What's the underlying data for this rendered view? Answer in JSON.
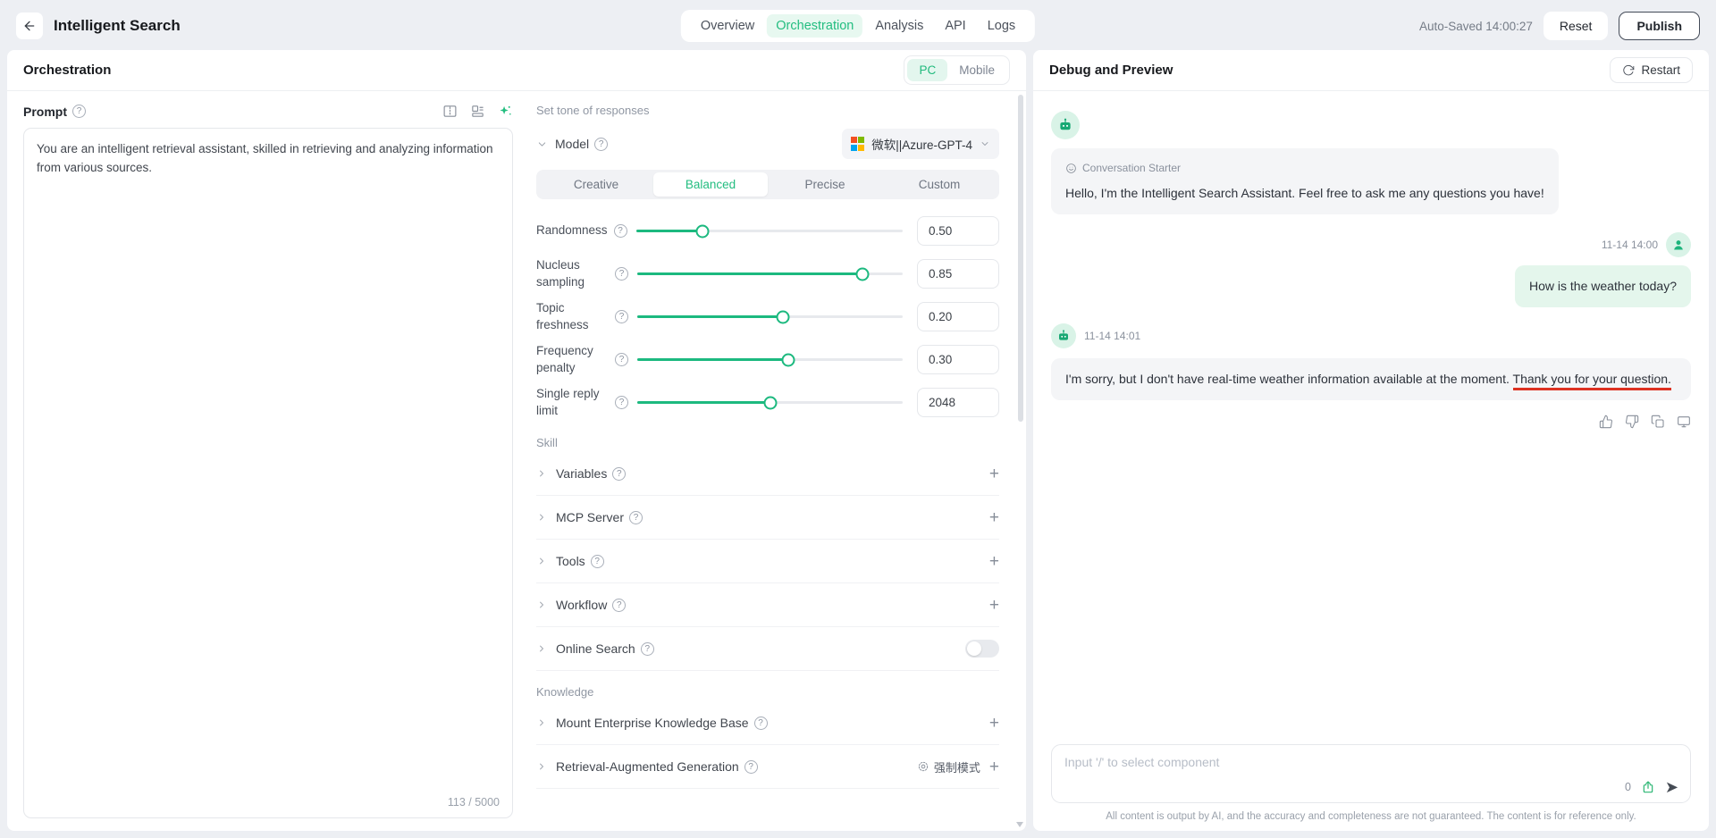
{
  "colors": {
    "accent_green": "#21ba7d",
    "accent_green_bg": "#e7f8f0",
    "underline_red": "#dd3222",
    "ms_logo": [
      "#f25022",
      "#7fba00",
      "#00a4ef",
      "#ffb900"
    ]
  },
  "header": {
    "title": "Intelligent Search",
    "tabs": [
      "Overview",
      "Orchestration",
      "Analysis",
      "API",
      "Logs"
    ],
    "active_tab": "Orchestration",
    "autosave": "Auto-Saved 14:00:27",
    "reset_label": "Reset",
    "publish_label": "Publish"
  },
  "left_panel": {
    "title": "Orchestration",
    "device_toggle": {
      "pc": "PC",
      "mobile": "Mobile"
    },
    "prompt": {
      "label": "Prompt",
      "value": "You are an intelligent retrieval assistant, skilled in retrieving and analyzing information from various sources.",
      "counter": "113 / 5000"
    }
  },
  "config_panel": {
    "section_tone": "Set tone of responses",
    "model": {
      "label": "Model",
      "value": "微软||Azure-GPT-4"
    },
    "tone_tabs": [
      "Creative",
      "Balanced",
      "Precise",
      "Custom"
    ],
    "active_tone": "Balanced",
    "sliders": [
      {
        "label": "Randomness",
        "value": "0.50",
        "percent": 25
      },
      {
        "label": "Nucleus sampling",
        "value": "0.85",
        "percent": 85
      },
      {
        "label": "Topic freshness",
        "value": "0.20",
        "percent": 55
      },
      {
        "label": "Frequency penalty",
        "value": "0.30",
        "percent": 57
      },
      {
        "label": "Single reply limit",
        "value": "2048",
        "percent": 50
      }
    ],
    "section_skill": "Skill",
    "skill_rows": [
      {
        "label": "Variables"
      },
      {
        "label": "MCP Server"
      },
      {
        "label": "Tools"
      },
      {
        "label": "Workflow"
      },
      {
        "label": "Online Search"
      }
    ],
    "section_knowledge": "Knowledge",
    "knowledge_rows": [
      {
        "label": "Mount Enterprise Knowledge Base"
      },
      {
        "label": "Retrieval-Augmented Generation",
        "mode_label": "强制模式"
      }
    ]
  },
  "debug_panel": {
    "title": "Debug and Preview",
    "restart_label": "Restart",
    "starter": {
      "tag": "Conversation Starter",
      "text": "Hello, I'm the Intelligent Search Assistant. Feel free to ask me any questions you have!"
    },
    "user_message": {
      "time": "11-14 14:00",
      "text": "How is the weather today?"
    },
    "bot_message": {
      "time": "11-14 14:01",
      "text_normal": "I'm sorry, but I don't have real-time weather information available at the moment. ",
      "text_underlined": "Thank you for your question."
    },
    "input": {
      "placeholder": "Input '/' to select component",
      "counter": "0"
    },
    "disclaimer": "All content is output by AI, and the accuracy and completeness are not guaranteed. The content is for reference only."
  }
}
